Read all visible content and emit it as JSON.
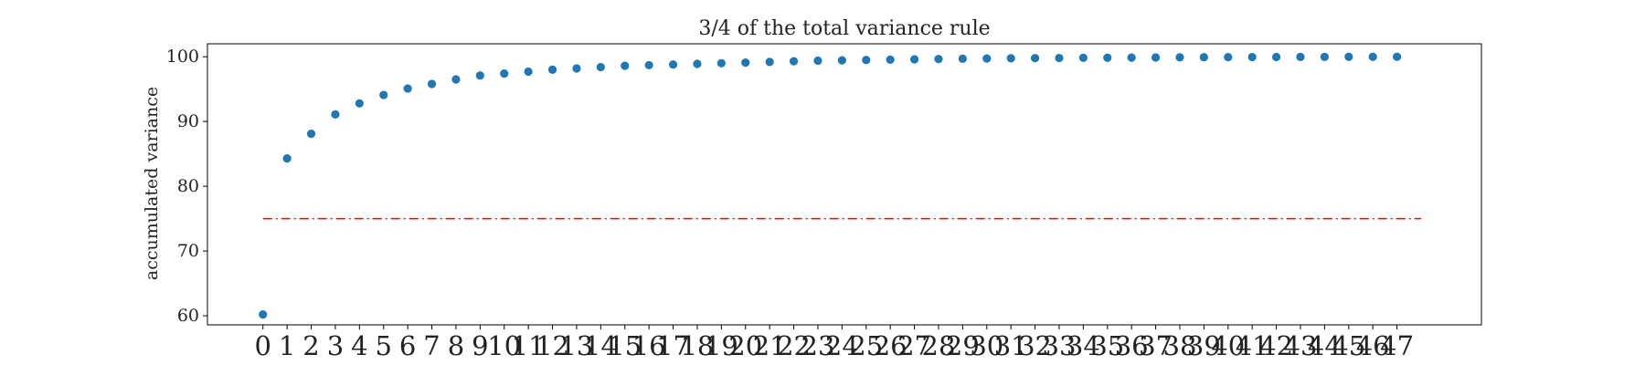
{
  "chart_data": {
    "type": "scatter",
    "title": "3/4 of the total variance rule",
    "xlabel": "",
    "ylabel": "accumulated variance",
    "x": [
      0,
      1,
      2,
      3,
      4,
      5,
      6,
      7,
      8,
      9,
      10,
      11,
      12,
      13,
      14,
      15,
      16,
      17,
      18,
      19,
      20,
      21,
      22,
      23,
      24,
      25,
      26,
      27,
      28,
      29,
      30,
      31,
      32,
      33,
      34,
      35,
      36,
      37,
      38,
      39,
      40,
      41,
      42,
      43,
      44,
      45,
      46,
      47
    ],
    "xtick_labels": [
      "0",
      "1",
      "2",
      "3",
      "4",
      "5",
      "6",
      "7",
      "8",
      "9",
      "10",
      "11",
      "12",
      "13",
      "14",
      "15",
      "16",
      "17",
      "18",
      "19",
      "20",
      "21",
      "22",
      "23",
      "24",
      "25",
      "26",
      "27",
      "28",
      "29",
      "30",
      "31",
      "32",
      "33",
      "34",
      "35",
      "36",
      "37",
      "38",
      "39",
      "40",
      "41",
      "42",
      "43",
      "44",
      "45",
      "46",
      "47"
    ],
    "series": [
      {
        "values": [
          60.2,
          84.3,
          88.1,
          91.1,
          92.8,
          94.1,
          95.1,
          95.8,
          96.5,
          97.1,
          97.4,
          97.7,
          98.0,
          98.2,
          98.4,
          98.6,
          98.7,
          98.8,
          98.9,
          99.0,
          99.1,
          99.2,
          99.3,
          99.4,
          99.45,
          99.5,
          99.55,
          99.6,
          99.65,
          99.7,
          99.73,
          99.76,
          99.79,
          99.81,
          99.83,
          99.85,
          99.87,
          99.89,
          99.91,
          99.93,
          99.94,
          99.95,
          99.96,
          99.97,
          99.98,
          99.99,
          99.99,
          100.0
        ],
        "color": "#1f77b4",
        "marker": "circle"
      }
    ],
    "threshold": {
      "value": 75,
      "x_range": [
        0,
        48
      ],
      "color": "#ff0000",
      "linestyle": "dash-dot"
    },
    "xlim": [
      -2.3,
      50.5
    ],
    "ylim": [
      58.6,
      102.0
    ],
    "yticks": [
      60,
      70,
      80,
      90,
      100
    ],
    "grid": false,
    "legend": "none"
  }
}
